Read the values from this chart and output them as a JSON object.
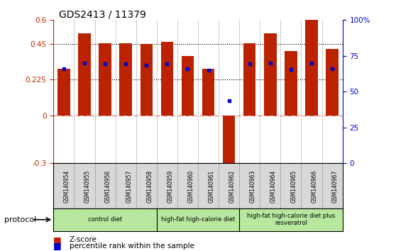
{
  "title": "GDS2413 / 11379",
  "samples": [
    "GSM140954",
    "GSM140955",
    "GSM140956",
    "GSM140957",
    "GSM140958",
    "GSM140959",
    "GSM140960",
    "GSM140961",
    "GSM140962",
    "GSM140963",
    "GSM140964",
    "GSM140965",
    "GSM140966",
    "GSM140967"
  ],
  "zscore": [
    0.295,
    0.515,
    0.455,
    0.455,
    0.45,
    0.465,
    0.375,
    0.295,
    -0.345,
    0.455,
    0.515,
    0.405,
    0.6,
    0.42
  ],
  "percentile": [
    0.295,
    0.33,
    0.325,
    0.325,
    0.315,
    0.325,
    0.295,
    0.285,
    0.095,
    0.325,
    0.33,
    0.29,
    0.33,
    0.295
  ],
  "bar_color": "#bb2200",
  "dot_color": "#0000cc",
  "ylim_left": [
    -0.3,
    0.6
  ],
  "yticks_left": [
    -0.3,
    0,
    0.225,
    0.45,
    0.6
  ],
  "ylim_right": [
    0,
    100
  ],
  "yticks_right": [
    0,
    25,
    50,
    75,
    100
  ],
  "ytick_labels_right": [
    "0",
    "25",
    "50",
    "75",
    "100%"
  ],
  "dotted_lines": [
    0.225,
    0.45
  ],
  "protocol_sections": [
    {
      "label": "control diet",
      "start": 0,
      "end": 5
    },
    {
      "label": "high-fat high-calorie diet",
      "start": 5,
      "end": 9
    },
    {
      "label": "high-fat high-calorie diet plus\nresveratrol",
      "start": 9,
      "end": 14
    }
  ],
  "protocol_label": "protocol",
  "legend_zscore": "Z-score",
  "legend_percentile": "percentile rank within the sample",
  "background_color": "#ffffff",
  "plot_bg_color": "#ffffff",
  "protocol_bg_color": "#b8e8a0",
  "sample_label_bg": "#d8d8d8"
}
